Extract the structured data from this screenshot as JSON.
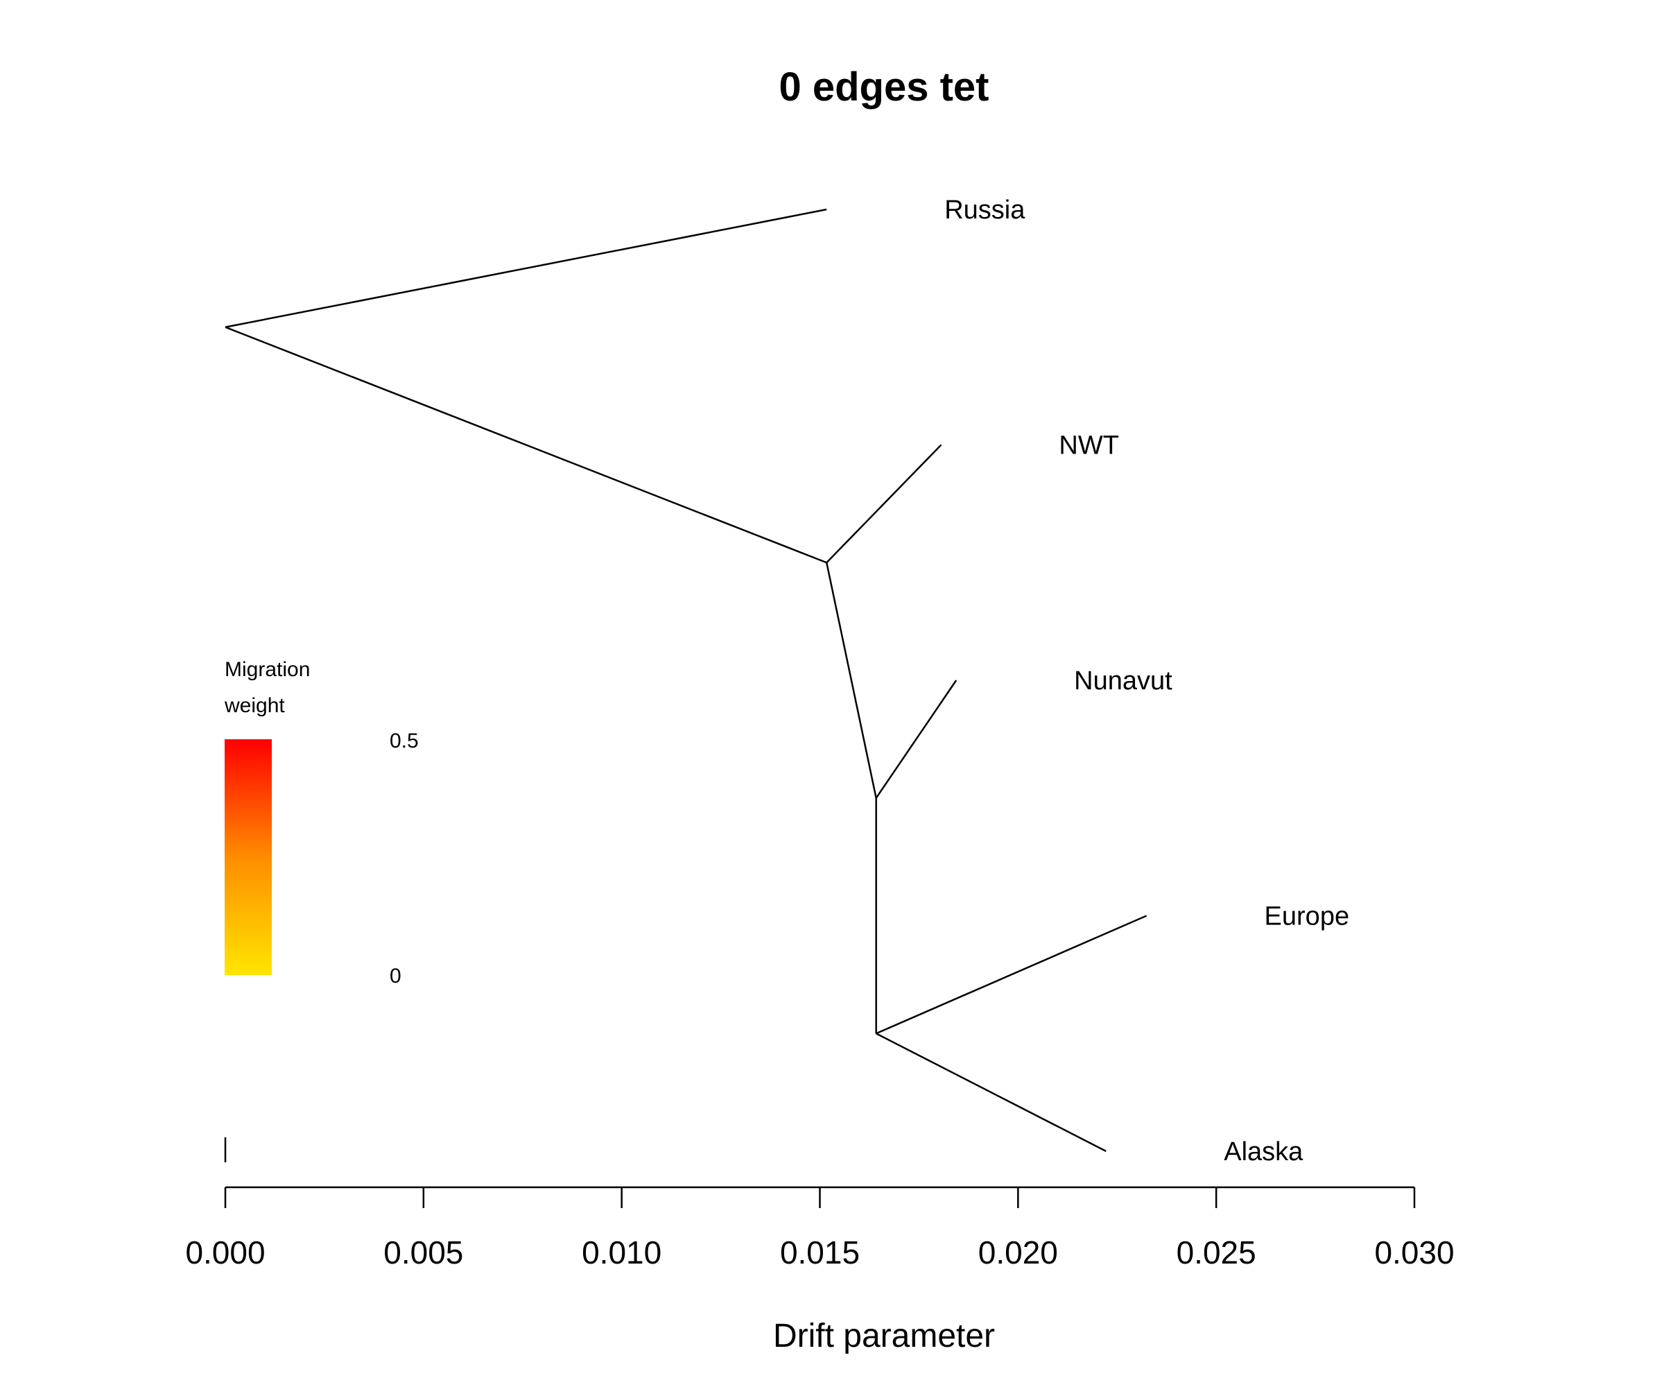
{
  "chart_data": {
    "type": "tree",
    "title": "0 edges tet",
    "xlabel": "Drift parameter",
    "xlim": [
      0,
      0.03
    ],
    "xticks": [
      "0.000",
      "0.005",
      "0.010",
      "0.015",
      "0.020",
      "0.025",
      "0.030"
    ],
    "nodes": [
      {
        "id": "root",
        "x": 0.0,
        "y": 5.0
      },
      {
        "id": "n1",
        "x": 0.01517,
        "y": 4.0
      },
      {
        "id": "n2",
        "x": 0.01642,
        "y": 3.0
      },
      {
        "id": "n3",
        "x": 0.01642,
        "y": 2.0
      },
      {
        "id": "Russia",
        "x": 0.01517,
        "y": 5.5,
        "label": "Russia"
      },
      {
        "id": "NWT",
        "x": 0.01806,
        "y": 4.5,
        "label": "NWT"
      },
      {
        "id": "Nunavut",
        "x": 0.01844,
        "y": 3.5,
        "label": "Nunavut"
      },
      {
        "id": "Europe",
        "x": 0.02324,
        "y": 2.5,
        "label": "Europe"
      },
      {
        "id": "Alaska",
        "x": 0.02222,
        "y": 1.5,
        "label": "Alaska"
      }
    ],
    "edges": [
      [
        "root",
        "Russia"
      ],
      [
        "root",
        "n1"
      ],
      [
        "n1",
        "NWT"
      ],
      [
        "n1",
        "n2"
      ],
      [
        "n2",
        "Nunavut"
      ],
      [
        "n2",
        "n3"
      ],
      [
        "n3",
        "Europe"
      ],
      [
        "n3",
        "Alaska"
      ]
    ],
    "legend": {
      "title_line1": "Migration",
      "title_line2": "weight",
      "max_label": "0.5",
      "min_label": "0",
      "color_high": "#ff0000",
      "color_mid": "#ff8c00",
      "color_low": "#ffe600"
    }
  }
}
